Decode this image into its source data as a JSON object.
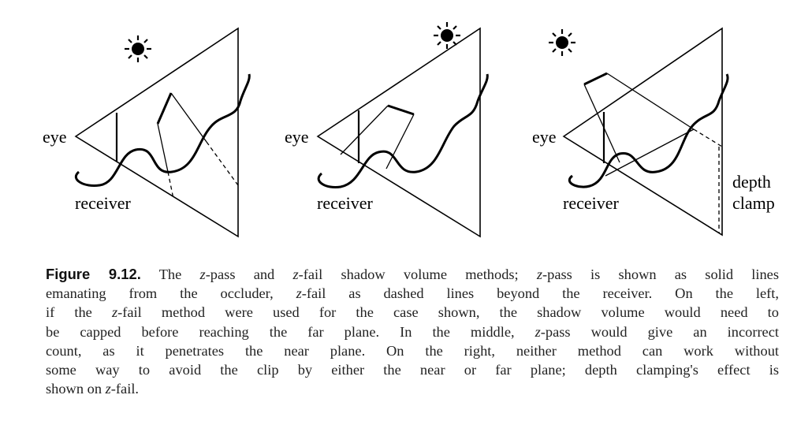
{
  "figure": {
    "panels": [
      {
        "eye_label": "eye",
        "receiver_label": "receiver"
      },
      {
        "eye_label": "eye",
        "receiver_label": "receiver"
      },
      {
        "eye_label": "eye",
        "receiver_label": "receiver",
        "clamp_label_line1": "depth",
        "clamp_label_line2": "clamp"
      }
    ]
  },
  "caption": {
    "label": "Figure 9.12.",
    "lines": [
      "The z-pass and z-fail shadow volume methods; z-pass is shown as solid lines",
      "emanating from the occluder, z-fail as dashed lines beyond the receiver. On the left,",
      "if the z-fail method were used for the case shown, the shadow volume would need to",
      "be capped before reaching the far plane. In the middle, z-pass would give an incorrect",
      "count, as it penetrates the near plane. On the right, neither method can work without",
      "some way to avoid the clip by either the near or far plane; depth clamping's effect is",
      "shown on z-fail."
    ]
  }
}
